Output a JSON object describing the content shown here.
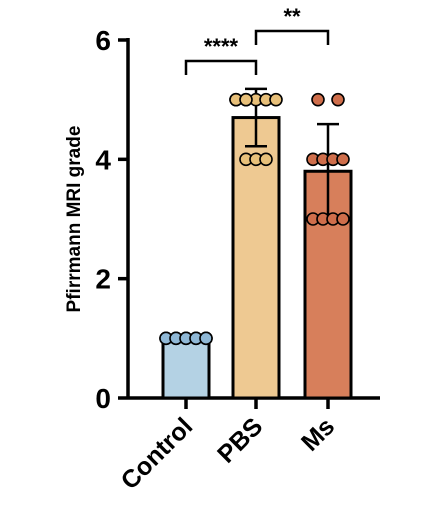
{
  "chart_data": {
    "type": "bar",
    "title": "",
    "xlabel": "",
    "ylabel": "Pfirrmann MRI grade",
    "ylim": [
      0,
      6
    ],
    "yticks": [
      0,
      2,
      4,
      6
    ],
    "grid": false,
    "legend": "none",
    "error_bars": "SD",
    "categories": [
      "Control",
      "PBS",
      "Ms"
    ],
    "series": [
      {
        "values": [
          1,
          4.7,
          3.8
        ],
        "error": [
          0,
          0.48,
          0.79
        ],
        "points": [
          [
            1,
            1,
            1,
            1,
            1,
            1,
            1,
            1,
            1,
            1
          ],
          [
            5,
            5,
            5,
            5,
            5,
            5,
            5,
            4,
            4,
            4
          ],
          [
            5,
            5,
            4,
            4,
            4,
            4,
            3,
            3,
            3,
            3
          ]
        ]
      }
    ],
    "colors": {
      "bars": [
        "#b4d2e4",
        "#eec992",
        "#d77f5b"
      ],
      "points": [
        "#8fb8d6",
        "#e8c07a",
        "#cf6e4b"
      ],
      "stroke": "#000000"
    },
    "annotations": [
      {
        "from": "Control",
        "to": "PBS",
        "label": "****"
      },
      {
        "from": "PBS",
        "to": "Ms",
        "label": "**"
      }
    ]
  }
}
